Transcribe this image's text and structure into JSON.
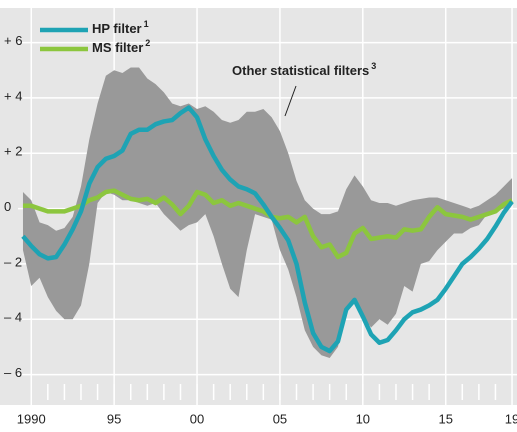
{
  "chart_data": {
    "type": "line",
    "x": [
      1989.5,
      1990,
      1990.5,
      1991,
      1991.5,
      1992,
      1992.5,
      1993,
      1993.5,
      1994,
      1994.5,
      1995,
      1995.5,
      1996,
      1996.5,
      1997,
      1997.5,
      1998,
      1998.5,
      1999,
      1999.5,
      2000,
      2000.5,
      2001,
      2001.5,
      2002,
      2002.5,
      2003,
      2003.5,
      2004,
      2004.5,
      2005,
      2005.5,
      2006,
      2006.5,
      2007,
      2007.5,
      2008,
      2008.5,
      2009,
      2009.5,
      2010,
      2010.5,
      2011,
      2011.5,
      2012,
      2012.5,
      2013,
      2013.5,
      2014,
      2014.5,
      2015,
      2015.5,
      2016,
      2016.5,
      2017,
      2017.5,
      2018,
      2018.5,
      2019
    ],
    "band": {
      "name": "Other statistical filters",
      "note": "3",
      "color": "#999999",
      "upper": [
        0.6,
        0.3,
        -0.5,
        -0.6,
        -0.8,
        -0.7,
        -0.3,
        0.8,
        2.5,
        3.8,
        4.8,
        5.0,
        4.9,
        5.1,
        5.1,
        4.7,
        4.5,
        4.2,
        3.8,
        3.7,
        3.8,
        3.6,
        3.7,
        3.5,
        3.2,
        3.1,
        3.2,
        3.5,
        3.5,
        3.6,
        3.3,
        2.8,
        2.0,
        1.0,
        0.3,
        0.0,
        -0.2,
        -0.2,
        -0.1,
        0.7,
        1.2,
        0.8,
        0.3,
        0.2,
        0.2,
        0.1,
        0.2,
        0.3,
        0.35,
        0.4,
        0.4,
        0.3,
        0.2,
        0.1,
        0.0,
        0.1,
        0.3,
        0.5,
        0.8,
        1.1
      ],
      "lower": [
        -1.5,
        -2.8,
        -2.5,
        -3.2,
        -3.7,
        -4.0,
        -4.0,
        -3.5,
        -2.0,
        0.2,
        0.6,
        0.5,
        0.3,
        0.3,
        0.2,
        0.1,
        0.2,
        -0.2,
        -0.5,
        -0.8,
        -0.6,
        -0.5,
        -0.2,
        -1.0,
        -2.0,
        -2.9,
        -3.2,
        -1.5,
        -0.2,
        -0.3,
        -0.4,
        -1.5,
        -2.2,
        -3.2,
        -4.4,
        -5.0,
        -5.3,
        -5.4,
        -5.0,
        -3.7,
        -3.4,
        -3.9,
        -4.3,
        -4.0,
        -4.2,
        -3.8,
        -2.8,
        -3.0,
        -2.0,
        -1.9,
        -1.5,
        -1.2,
        -0.9,
        -0.9,
        -0.7,
        -0.6,
        -0.2,
        -0.1,
        0.0,
        0.2
      ]
    },
    "series": [
      {
        "name": "HP filter",
        "note": "1",
        "color": "#1ea3b4",
        "values": [
          -1.0,
          -1.35,
          -1.65,
          -1.8,
          -1.75,
          -1.3,
          -0.75,
          -0.1,
          0.9,
          1.5,
          1.8,
          1.9,
          2.1,
          2.7,
          2.85,
          2.85,
          3.05,
          3.15,
          3.2,
          3.45,
          3.65,
          3.3,
          2.5,
          1.9,
          1.4,
          1.05,
          0.8,
          0.7,
          0.55,
          0.15,
          -0.3,
          -0.7,
          -1.15,
          -2.0,
          -3.4,
          -4.5,
          -5.0,
          -5.15,
          -4.8,
          -3.65,
          -3.3,
          -3.9,
          -4.55,
          -4.85,
          -4.75,
          -4.4,
          -4.0,
          -3.75,
          -3.65,
          -3.5,
          -3.3,
          -2.9,
          -2.45,
          -2.0,
          -1.75,
          -1.45,
          -1.1,
          -0.65,
          -0.15,
          0.25
        ]
      },
      {
        "name": "MS filter",
        "note": "2",
        "color": "#8cc63e",
        "values": [
          0.1,
          0.1,
          0.0,
          -0.1,
          -0.1,
          -0.1,
          0.0,
          0.1,
          0.3,
          0.4,
          0.6,
          0.65,
          0.5,
          0.35,
          0.3,
          0.35,
          0.2,
          0.4,
          0.15,
          -0.2,
          0.1,
          0.6,
          0.5,
          0.2,
          0.3,
          0.1,
          0.2,
          0.1,
          0.0,
          -0.1,
          -0.3,
          -0.35,
          -0.3,
          -0.5,
          -0.3,
          -1.0,
          -1.4,
          -1.3,
          -1.75,
          -1.6,
          -0.9,
          -0.7,
          -1.1,
          -1.05,
          -1.0,
          -1.05,
          -0.75,
          -0.8,
          -0.75,
          -0.3,
          0.05,
          -0.2,
          -0.25,
          -0.3,
          -0.4,
          -0.3,
          -0.2,
          -0.1,
          0.15,
          0.3
        ]
      }
    ],
    "xlim": [
      1989.2,
      2019.3
    ],
    "ylim": [
      -7.1,
      7.25
    ],
    "xticks": [
      1990,
      {
        "value": 1995,
        "label": "95"
      },
      {
        "value": 2000,
        "label": "00"
      },
      {
        "value": 2005,
        "label": "05"
      },
      {
        "value": 2010,
        "label": "10"
      },
      {
        "value": 2015,
        "label": "15"
      },
      {
        "value": 2019,
        "label": "19"
      }
    ],
    "xminor": [
      1990,
      1991,
      1992,
      1993,
      1994,
      1995,
      1996,
      1997,
      1998,
      1999,
      2000,
      2001,
      2002,
      2003,
      2004,
      2005,
      2006,
      2007,
      2008,
      2009,
      2010,
      2011,
      2012,
      2013,
      2014,
      2015,
      2016,
      2017,
      2018
    ],
    "yticks": [
      {
        "value": 6,
        "label": "+ 6"
      },
      {
        "value": 4,
        "label": "+ 4"
      },
      {
        "value": 2,
        "label": "+ 2"
      },
      0,
      {
        "value": -2,
        "label": "– 2"
      },
      {
        "value": -4,
        "label": "– 4"
      },
      {
        "value": -6,
        "label": "– 6"
      }
    ],
    "grid": true,
    "background": "#e6e6e6"
  }
}
